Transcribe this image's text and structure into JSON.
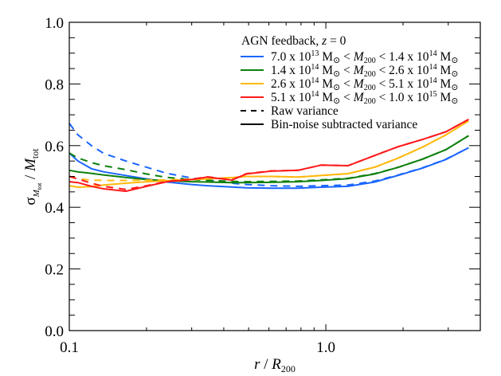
{
  "chart_data": {
    "type": "line",
    "title": "",
    "xlabel": "r / R200",
    "ylabel": "σ_Mtot / Mtot",
    "xscale": "log",
    "xlim": [
      0.1,
      4.0
    ],
    "ylim": [
      0.0,
      1.0
    ],
    "grid": false,
    "legend_position": "upper right",
    "legend_title": "AGN feedback, z = 0",
    "x_ticks": [
      {
        "value": 0.1,
        "label": "0.1"
      },
      {
        "value": 1.0,
        "label": "1.0"
      }
    ],
    "y_ticks": [
      {
        "value": 0.0,
        "label": "0.0"
      },
      {
        "value": 0.2,
        "label": "0.2"
      },
      {
        "value": 0.4,
        "label": "0.4"
      },
      {
        "value": 0.6,
        "label": "0.6"
      },
      {
        "value": 0.8,
        "label": "0.8"
      },
      {
        "value": 1.0,
        "label": "1.0"
      }
    ],
    "legend": [
      {
        "label_parts": [
          "7.0 x 10",
          "13",
          " M",
          "⊙",
          " < ",
          "M",
          "200",
          " < 1.4 x 10",
          "14",
          " M",
          "⊙"
        ],
        "label": "7.0 x 10^13 M☉ < M200 < 1.4 x 10^14 M☉",
        "color": "#1a66ff",
        "style": "solid"
      },
      {
        "label_parts": [
          "1.4 x 10",
          "14",
          " M",
          "⊙",
          " < ",
          "M",
          "200",
          " < 2.6 x 10",
          "14",
          " M",
          "⊙"
        ],
        "label": "1.4 x 10^14 M☉ < M200 < 2.6 x 10^14 M☉",
        "color": "#0e800e",
        "style": "solid"
      },
      {
        "label_parts": [
          "2.6 x 10",
          "14",
          " M",
          "⊙",
          " < ",
          "M",
          "200",
          " < 5.1 x 10",
          "14",
          " M",
          "⊙"
        ],
        "label": "2.6 x 10^14 M☉ < M200 < 5.1 x 10^14 M☉",
        "color": "#ffb80d",
        "style": "solid"
      },
      {
        "label_parts": [
          "5.1 x 10",
          "14",
          " M",
          "⊙",
          " < ",
          "M",
          "200",
          " < 1.0 x 10",
          "15",
          " M",
          "⊙"
        ],
        "label": "5.1 x 10^14 M☉ < M200 < 1.0 x 10^15 M☉",
        "color": "#ff1a1a",
        "style": "solid"
      },
      {
        "label": "Raw variance",
        "color": "#000000",
        "style": "dashed"
      },
      {
        "label": "Bin-noise subtracted variance",
        "color": "#000000",
        "style": "solid"
      }
    ],
    "x": [
      0.1,
      0.108,
      0.122,
      0.136,
      0.166,
      0.2,
      0.24,
      0.3,
      0.345,
      0.43,
      0.49,
      0.61,
      0.78,
      0.96,
      1.22,
      1.55,
      1.92,
      2.38,
      2.94,
      3.6
    ],
    "series": [
      {
        "name": "7.0e13-1.4e14 bin-noise subtracted",
        "color": "#1a66ff",
        "style": "solid",
        "values": [
          0.576,
          0.55,
          0.525,
          0.515,
          0.503,
          0.492,
          0.482,
          0.474,
          0.47,
          0.466,
          0.463,
          0.462,
          0.462,
          0.465,
          0.468,
          0.482,
          0.504,
          0.527,
          0.555,
          0.593
        ]
      },
      {
        "name": "7.0e13-1.4e14 raw",
        "color": "#1a66ff",
        "style": "dashed",
        "values": [
          0.672,
          0.635,
          0.6,
          0.575,
          0.55,
          0.53,
          0.51,
          0.495,
          0.488,
          0.478,
          0.474,
          0.47,
          0.468,
          0.47,
          0.472,
          0.485,
          0.505,
          0.528,
          0.556,
          0.593
        ]
      },
      {
        "name": "1.4e14-2.6e14 bin-noise subtracted",
        "color": "#0e800e",
        "style": "solid",
        "values": [
          0.52,
          0.515,
          0.51,
          0.505,
          0.497,
          0.49,
          0.486,
          0.483,
          0.482,
          0.48,
          0.48,
          0.481,
          0.483,
          0.487,
          0.493,
          0.508,
          0.53,
          0.556,
          0.587,
          0.632
        ]
      },
      {
        "name": "1.4e14-2.6e14 raw",
        "color": "#0e800e",
        "style": "dashed",
        "values": [
          0.576,
          0.56,
          0.545,
          0.535,
          0.522,
          0.508,
          0.497,
          0.49,
          0.487,
          0.484,
          0.483,
          0.484,
          0.485,
          0.489,
          0.494,
          0.509,
          0.53,
          0.556,
          0.587,
          0.632
        ]
      },
      {
        "name": "2.6e14-5.1e14 bin-noise subtracted",
        "color": "#ffb80d",
        "style": "solid",
        "values": [
          0.47,
          0.465,
          0.467,
          0.472,
          0.478,
          0.483,
          0.486,
          0.49,
          0.492,
          0.496,
          0.5,
          0.5,
          0.498,
          0.503,
          0.509,
          0.53,
          0.56,
          0.595,
          0.635,
          0.68
        ]
      },
      {
        "name": "2.6e14-5.1e14 raw",
        "color": "#ffb80d",
        "style": "dashed",
        "values": [
          0.5,
          0.492,
          0.488,
          0.487,
          0.487,
          0.488,
          0.489,
          0.491,
          0.493,
          0.496,
          0.5,
          0.5,
          0.498,
          0.503,
          0.509,
          0.53,
          0.56,
          0.595,
          0.635,
          0.68
        ]
      },
      {
        "name": "5.1e14-1.0e15 bin-noise subtracted",
        "color": "#ff1a1a",
        "style": "solid",
        "values": [
          0.483,
          0.48,
          0.468,
          0.46,
          0.452,
          0.468,
          0.483,
          0.49,
          0.498,
          0.488,
          0.508,
          0.517,
          0.52,
          0.537,
          0.535,
          0.568,
          0.597,
          0.62,
          0.645,
          0.685
        ]
      },
      {
        "name": "5.1e14-1.0e15 raw",
        "color": "#ff1a1a",
        "style": "dashed",
        "values": [
          0.5,
          0.492,
          0.478,
          0.468,
          0.458,
          0.47,
          0.484,
          0.491,
          0.499,
          0.489,
          0.509,
          0.518,
          0.52,
          0.537,
          0.535,
          0.568,
          0.597,
          0.62,
          0.645,
          0.685
        ]
      }
    ]
  }
}
